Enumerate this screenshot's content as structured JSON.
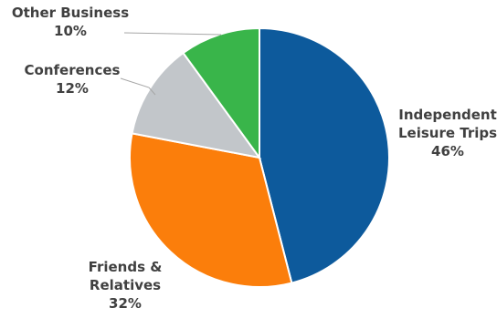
{
  "chart_data": {
    "type": "pie",
    "start_angle_deg": 0,
    "direction": "clockwise",
    "slices": [
      {
        "label_lines": [
          "Independent",
          "Leisure Trips"
        ],
        "value": 46,
        "value_label": "46%",
        "color": "#0d5a9c"
      },
      {
        "label_lines": [
          "Friends &",
          "Relatives"
        ],
        "value": 32,
        "value_label": "32%",
        "color": "#fb7e0b"
      },
      {
        "label_lines": [
          "Conferences"
        ],
        "value": 12,
        "value_label": "12%",
        "color": "#c2c6ca"
      },
      {
        "label_lines": [
          "Other Business"
        ],
        "value": 10,
        "value_label": "10%",
        "color": "#39b54a"
      }
    ]
  }
}
